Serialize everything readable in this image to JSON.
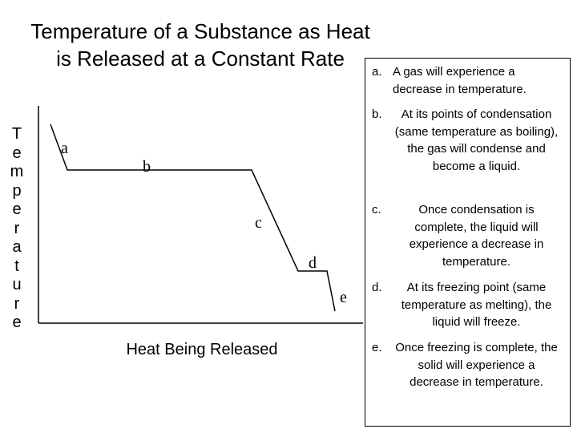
{
  "title_line1": "Temperature of a Substance as Heat",
  "title_line2": "is Released at a Constant Rate",
  "y_label": "Temperature",
  "x_label": "Heat Being Released",
  "points": [
    {
      "label": "a"
    },
    {
      "label": "b"
    },
    {
      "label": "c"
    },
    {
      "label": "d"
    },
    {
      "label": "e"
    }
  ],
  "notes": [
    {
      "letter": "a.",
      "text": "A gas will experience a decrease in temperature."
    },
    {
      "letter": "b.",
      "text": "At its points of condensation (same temperature as boiling), the gas will condense and become a liquid."
    },
    {
      "letter": "c.",
      "text": "Once condensation is complete, the liquid will experience a decrease in temperature."
    },
    {
      "letter": "d.",
      "text": "At its freezing point (same temperature as melting), the liquid will freeze."
    },
    {
      "letter": "e.",
      "text": "Once freezing is complete, the solid will experience a decrease in temperature."
    }
  ]
}
